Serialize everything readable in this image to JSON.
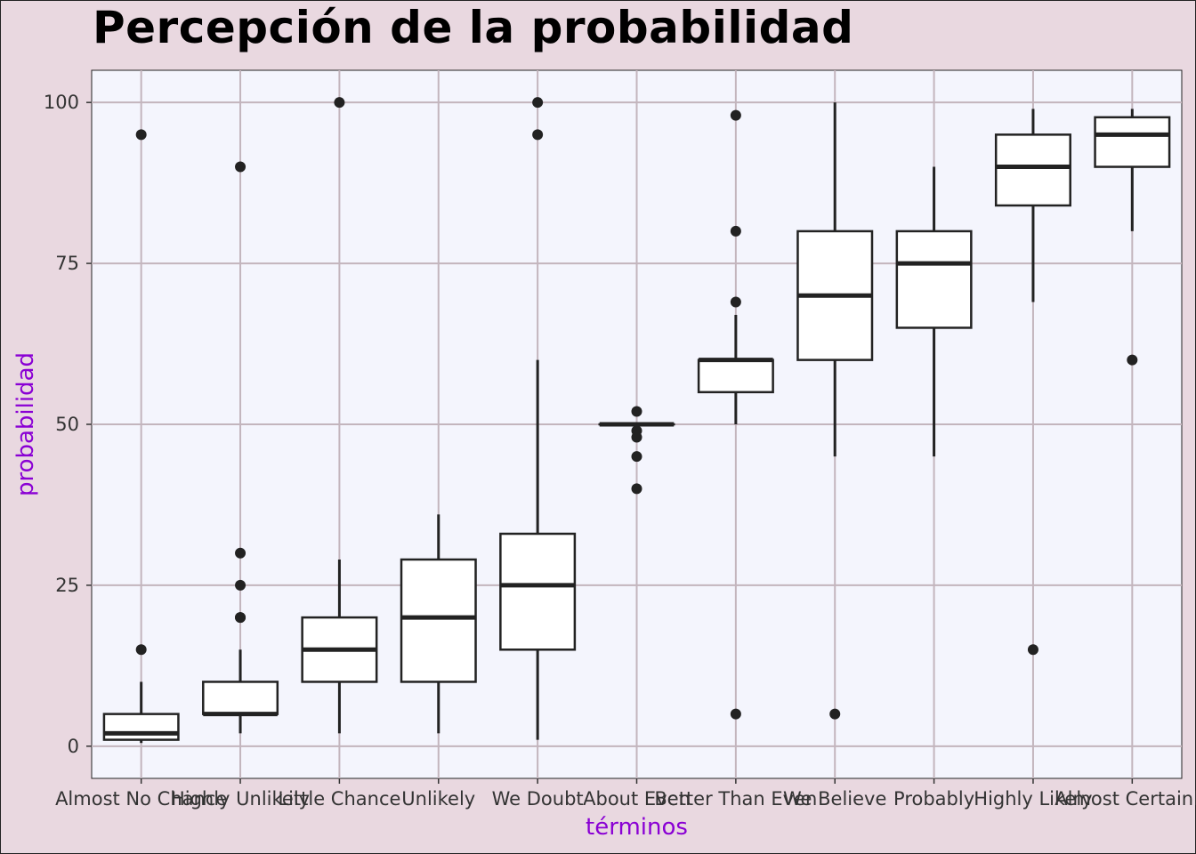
{
  "chart_data": {
    "type": "boxplot",
    "title": "Percepción de la probabilidad",
    "xlabel": "términos",
    "ylabel": "probabilidad",
    "ylim": [
      -5,
      105
    ],
    "yticks": [
      0,
      25,
      50,
      75,
      100
    ],
    "grid": true,
    "categories": [
      "Almost No Chance",
      "Highly Unlikely",
      "Little Chance",
      "Unlikely",
      "We Doubt",
      "About Even",
      "Better Than Even",
      "We Believe",
      "Probably",
      "Highly Likely",
      "Almost Certainly"
    ],
    "boxes": [
      {
        "category": "Almost No Chance",
        "whisker_low": 0.5,
        "q1": 1,
        "median": 2,
        "q3": 5,
        "whisker_high": 10,
        "outliers": [
          15,
          95
        ]
      },
      {
        "category": "Highly Unlikely",
        "whisker_low": 2,
        "q1": 5,
        "median": 5,
        "q3": 10,
        "whisker_high": 15,
        "outliers": [
          20,
          20,
          25,
          30,
          90
        ]
      },
      {
        "category": "Little Chance",
        "whisker_low": 2,
        "q1": 10,
        "median": 15,
        "q3": 20,
        "whisker_high": 29,
        "outliers": [
          100
        ]
      },
      {
        "category": "Unlikely",
        "whisker_low": 2,
        "q1": 10,
        "median": 20,
        "q3": 29,
        "whisker_high": 36,
        "outliers": []
      },
      {
        "category": "We Doubt",
        "whisker_low": 1,
        "q1": 15,
        "median": 25,
        "q3": 33,
        "whisker_high": 60,
        "outliers": [
          95,
          100
        ]
      },
      {
        "category": "About Even",
        "whisker_low": 50,
        "q1": 50,
        "median": 50,
        "q3": 50,
        "whisker_high": 50,
        "outliers": [
          40,
          45,
          48,
          49,
          52
        ]
      },
      {
        "category": "Better Than Even",
        "whisker_low": 50,
        "q1": 55,
        "median": 60,
        "q3": 60,
        "whisker_high": 67,
        "outliers": [
          5,
          69,
          80,
          98
        ]
      },
      {
        "category": "We Believe",
        "whisker_low": 45,
        "q1": 60,
        "median": 70,
        "q3": 80,
        "whisker_high": 100,
        "outliers": [
          5
        ]
      },
      {
        "category": "Probably",
        "whisker_low": 45,
        "q1": 65,
        "median": 75,
        "q3": 80,
        "whisker_high": 90,
        "outliers": []
      },
      {
        "category": "Highly Likely",
        "whisker_low": 69,
        "q1": 84,
        "median": 90,
        "q3": 95,
        "whisker_high": 99,
        "outliers": [
          15
        ]
      },
      {
        "category": "Almost Certainly",
        "whisker_low": 80,
        "q1": 90,
        "median": 95,
        "q3": 97.7,
        "whisker_high": 99,
        "outliers": [
          60
        ]
      }
    ],
    "colors": {
      "page_background": "#e9d8e0",
      "panel_background": "#f4f5fd",
      "grid": "#c3b5bd",
      "box_fill": "#ffffff",
      "box_stroke": "#222222",
      "axis_title": "#8a00d4",
      "tick_label": "#333333"
    }
  }
}
